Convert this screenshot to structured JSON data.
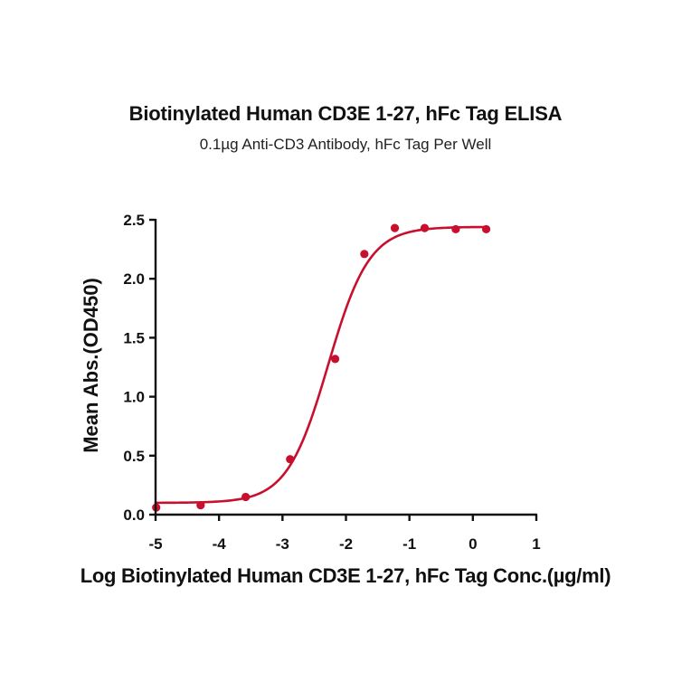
{
  "chart_data": {
    "type": "scatter",
    "title": "Biotinylated Human CD3E 1-27, hFc Tag ELISA",
    "subtitle": "0.1µg Anti-CD3 Antibody, hFc Tag Per Well",
    "xlabel": "Log Biotinylated Human CD3E 1-27, hFc Tag Conc.(µg/ml)",
    "ylabel": "Mean Abs.(OD450)",
    "xlim": [
      -5,
      1
    ],
    "ylim": [
      0,
      2.5
    ],
    "x_ticks": [
      -5,
      -4,
      -3,
      -2,
      -1,
      0,
      1
    ],
    "x_tick_labels": [
      "-5",
      "-4",
      "-3",
      "-2",
      "-1",
      "0",
      "1"
    ],
    "y_ticks": [
      0,
      0.5,
      1.0,
      1.5,
      2.0,
      2.5
    ],
    "y_tick_labels": [
      "0.0",
      "0.5",
      "1.0",
      "1.5",
      "2.0",
      "2.5"
    ],
    "grid": false,
    "legend": null,
    "series": [
      {
        "name": "Biotinylated Human CD3E 1-27, hFc Tag",
        "color": "#C8102E",
        "x": [
          -4.99,
          -4.29,
          -3.58,
          -2.88,
          -2.17,
          -1.71,
          -1.23,
          -0.76,
          -0.27,
          0.21
        ],
        "y": [
          0.06,
          0.08,
          0.15,
          0.47,
          1.32,
          2.21,
          2.43,
          2.43,
          2.42,
          2.42
        ]
      }
    ],
    "fit": {
      "model": "4PL",
      "bottom": 0.1,
      "top": 2.44,
      "log_ec50": -2.28,
      "hill_slope": 1.34,
      "x_range": [
        -5,
        0.21
      ],
      "color": "#C8102E"
    }
  }
}
